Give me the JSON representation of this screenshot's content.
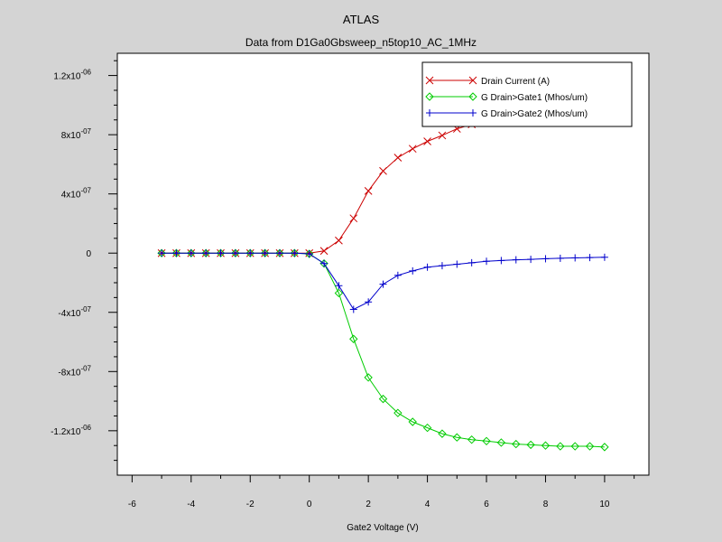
{
  "chart_data": {
    "type": "line",
    "title": "ATLAS",
    "subtitle": "Data from D1Ga0Gbsweep_n5top10_AC_1MHz",
    "xlabel": "Gate2 Voltage (V)",
    "ylabel": "",
    "xlim": [
      -6.5,
      11.5
    ],
    "ylim": [
      -1.5e-06,
      1.35e-06
    ],
    "x_ticks": [
      {
        "value": -6,
        "label": "-6"
      },
      {
        "value": -4,
        "label": "-4"
      },
      {
        "value": -2,
        "label": "-2"
      },
      {
        "value": 0,
        "label": "0"
      },
      {
        "value": 2,
        "label": "2"
      },
      {
        "value": 4,
        "label": "4"
      },
      {
        "value": 6,
        "label": "6"
      },
      {
        "value": 8,
        "label": "8"
      },
      {
        "value": 10,
        "label": "10"
      }
    ],
    "y_ticks": [
      {
        "value": 1.2e-06,
        "mant": "1.2x10",
        "exp": "-06"
      },
      {
        "value": 8e-07,
        "mant": "8x10",
        "exp": "-07"
      },
      {
        "value": 4e-07,
        "mant": "4x10",
        "exp": "-07"
      },
      {
        "value": 0,
        "mant": "0",
        "exp": ""
      },
      {
        "value": -4e-07,
        "mant": "-4x10",
        "exp": "-07"
      },
      {
        "value": -8e-07,
        "mant": "-8x10",
        "exp": "-07"
      },
      {
        "value": -1.2e-06,
        "mant": "-1.2x10",
        "exp": "-06"
      }
    ],
    "grid": false,
    "legend_position": "top-right",
    "series": [
      {
        "name": "Drain Current (A)",
        "color": "#cc0000",
        "marker": "x",
        "x": [
          -5,
          -4.5,
          -4,
          -3.5,
          -3,
          -2.5,
          -2,
          -1.5,
          -1,
          -0.5,
          0,
          0.5,
          1,
          1.5,
          2,
          2.5,
          3,
          3.5,
          4,
          4.5,
          5,
          5.5,
          6,
          6.5,
          7,
          7.5,
          8,
          8.5,
          9,
          9.5,
          10
        ],
        "y": [
          0,
          0,
          0,
          0,
          0,
          0,
          0,
          0,
          0,
          0,
          0,
          1.5e-08,
          8.5e-08,
          2.35e-07,
          4.2e-07,
          5.55e-07,
          6.45e-07,
          7.05e-07,
          7.55e-07,
          7.95e-07,
          8.4e-07,
          8.7e-07,
          8.95e-07,
          9.15e-07,
          9.3e-07,
          9.45e-07,
          9.55e-07,
          9.65e-07,
          9.75e-07,
          9.82e-07,
          9.9e-07
        ]
      },
      {
        "name": "G Drain>Gate1 (Mhos/um)",
        "color": "#00cc00",
        "marker": "diamond",
        "x": [
          -5,
          -4.5,
          -4,
          -3.5,
          -3,
          -2.5,
          -2,
          -1.5,
          -1,
          -0.5,
          0,
          0.5,
          1,
          1.5,
          2,
          2.5,
          3,
          3.5,
          4,
          4.5,
          5,
          5.5,
          6,
          6.5,
          7,
          7.5,
          8,
          8.5,
          9,
          9.5,
          10
        ],
        "y": [
          0,
          0,
          0,
          0,
          0,
          0,
          0,
          0,
          0,
          0,
          -5e-09,
          -7e-08,
          -2.7e-07,
          -5.8e-07,
          -8.4e-07,
          -9.85e-07,
          -1.08e-06,
          -1.14e-06,
          -1.18e-06,
          -1.22e-06,
          -1.245e-06,
          -1.26e-06,
          -1.27e-06,
          -1.28e-06,
          -1.29e-06,
          -1.295e-06,
          -1.3e-06,
          -1.305e-06,
          -1.305e-06,
          -1.305e-06,
          -1.31e-06
        ]
      },
      {
        "name": "G Drain>Gate2 (Mhos/um)",
        "color": "#0000cc",
        "marker": "plus",
        "x": [
          -5,
          -4.5,
          -4,
          -3.5,
          -3,
          -2.5,
          -2,
          -1.5,
          -1,
          -0.5,
          0,
          0.5,
          1,
          1.5,
          2,
          2.5,
          3,
          3.5,
          4,
          4.5,
          5,
          5.5,
          6,
          6.5,
          7,
          7.5,
          8,
          8.5,
          9,
          9.5,
          10
        ],
        "y": [
          0,
          0,
          0,
          0,
          0,
          0,
          0,
          0,
          0,
          0,
          -5e-09,
          -7e-08,
          -2.2e-07,
          -3.8e-07,
          -3.3e-07,
          -2.1e-07,
          -1.5e-07,
          -1.2e-07,
          -9.5e-08,
          -8.5e-08,
          -7.5e-08,
          -6.5e-08,
          -5.5e-08,
          -5e-08,
          -4.5e-08,
          -4.2e-08,
          -3.8e-08,
          -3.5e-08,
          -3.2e-08,
          -3e-08,
          -2.8e-08
        ]
      }
    ]
  }
}
